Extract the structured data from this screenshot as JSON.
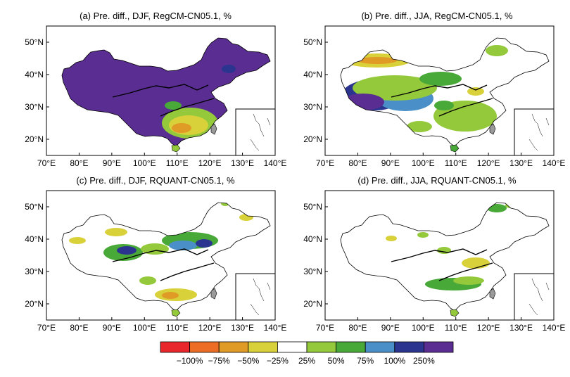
{
  "palette": {
    "red": "#e8262b",
    "orange": "#ee6d24",
    "dark_yellow": "#e09a26",
    "yellow": "#d9d13a",
    "white": "#ffffff",
    "light_green": "#94c93c",
    "green": "#48a838",
    "blue": "#4a8fc8",
    "dark_blue": "#2b3590",
    "purple": "#5a2d92",
    "taiwan_gray": "#9a9a9a"
  },
  "axes": {
    "x_ticks": [
      "70°E",
      "80°E",
      "90°E",
      "100°E",
      "110°E",
      "120°E",
      "130°E",
      "140°E"
    ],
    "y_ticks": [
      "20°N",
      "30°N",
      "40°N",
      "50°N"
    ],
    "lon_range": [
      70,
      140
    ],
    "lat_range": [
      15,
      55
    ]
  },
  "panels": [
    {
      "id": "a",
      "title": "(a) Pre. diff., DJF, RegCM-CN05.1, %",
      "dominant": "purple"
    },
    {
      "id": "b",
      "title": "(b) Pre. diff., JJA, RegCM-CN05.1, %",
      "dominant": "mixed"
    },
    {
      "id": "c",
      "title": "(c) Pre. diff., DJF, RQUANT-CN05.1, %",
      "dominant": "white"
    },
    {
      "id": "d",
      "title": "(d) Pre. diff., JJA, RQUANT-CN05.1, %",
      "dominant": "white"
    }
  ],
  "colorbar": {
    "labels": [
      "−100%",
      "−75%",
      "−50%",
      "−25%",
      "25%",
      "50%",
      "75%",
      "100%",
      "250%"
    ],
    "colors": [
      "#e8262b",
      "#ee6d24",
      "#e09a26",
      "#d9d13a",
      "#ffffff",
      "#94c93c",
      "#48a838",
      "#4a8fc8",
      "#2b3590",
      "#5a2d92"
    ]
  }
}
